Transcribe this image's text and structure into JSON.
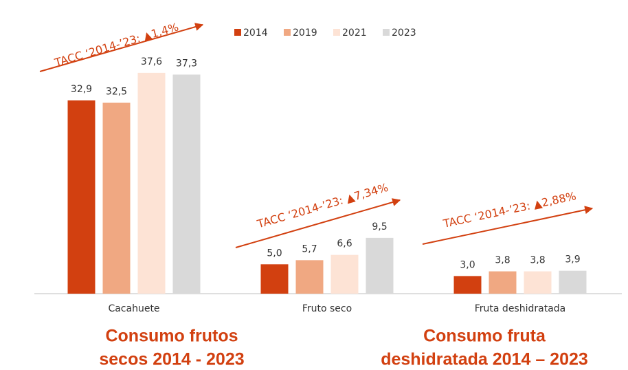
{
  "chart_data": {
    "type": "bar",
    "categories": [
      "Cacahuete",
      "Fruto seco",
      "Fruta deshidratada"
    ],
    "series": [
      {
        "name": "2014",
        "color": "#d24010",
        "values": [
          32.9,
          5.0,
          3.0
        ],
        "value_labels": [
          "32,9",
          "5,0",
          "3,0"
        ]
      },
      {
        "name": "2019",
        "color": "#f0a882",
        "values": [
          32.5,
          5.7,
          3.8
        ],
        "value_labels": [
          "32,5",
          "5,7",
          "3,8"
        ]
      },
      {
        "name": "2021",
        "color": "#fde3d5",
        "values": [
          37.6,
          6.6,
          3.8
        ],
        "value_labels": [
          "37,6",
          "6,6",
          "3,8"
        ]
      },
      {
        "name": "2023",
        "color": "#d9d9d9",
        "values": [
          37.3,
          9.5,
          3.9
        ],
        "value_labels": [
          "37,3",
          "9,5",
          "3,9"
        ]
      }
    ],
    "ylim": [
      0,
      50
    ],
    "legend": "top",
    "annotations": [
      "TACC ‘2014-’23: ▲1,4%",
      "TACC ‘2014-’23: ▲7,34%",
      "TACC ‘2014-’23: ▲2,88%"
    ],
    "footer_titles": [
      [
        "Consumo frutos",
        "secos 2014 - 2023"
      ],
      [
        "Consumo fruta",
        "deshidratada 2014 – 2023"
      ]
    ]
  }
}
